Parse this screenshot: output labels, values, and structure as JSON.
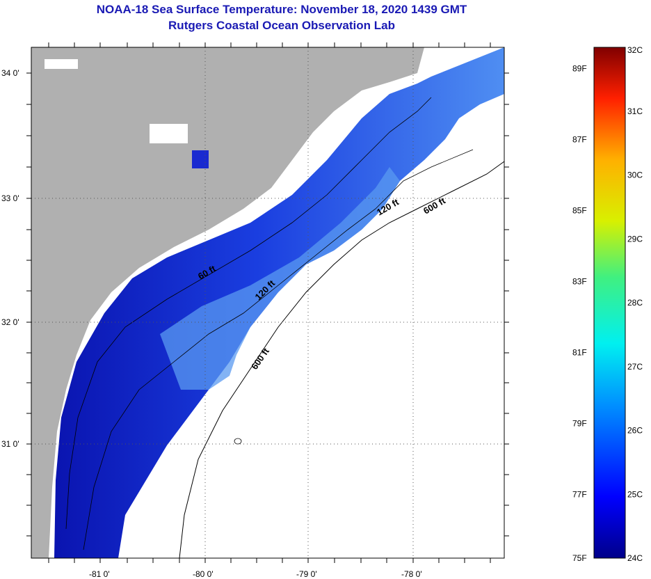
{
  "header": {
    "title": "NOAA-18 Sea Surface Temperature:  November 18, 2020 1439 GMT",
    "subtitle": "Rutgers Coastal Ocean Observation Lab"
  },
  "map": {
    "lat_labels": [
      "34 0'",
      "33 0'",
      "32 0'",
      "31 0'"
    ],
    "lon_labels": [
      "-81 0'",
      "-80 0'",
      "-79 0'",
      "-78 0'"
    ],
    "contour_labels": [
      "60 ft",
      "120 ft",
      "600 ft",
      "120 ft",
      "600 ft"
    ],
    "colors": {
      "land": "#b0b0b0",
      "cloud": "#ffffff",
      "warm_water": "#4a86f0",
      "cool_water": "#0a18c8"
    }
  },
  "colorbar": {
    "celsius": [
      "32C",
      "31C",
      "30C",
      "29C",
      "28C",
      "27C",
      "26C",
      "25C",
      "24C"
    ],
    "fahrenheit": [
      "89F",
      "87F",
      "85F",
      "83F",
      "81F",
      "79F",
      "77F",
      "75F"
    ],
    "min_c": 24,
    "max_c": 32
  }
}
